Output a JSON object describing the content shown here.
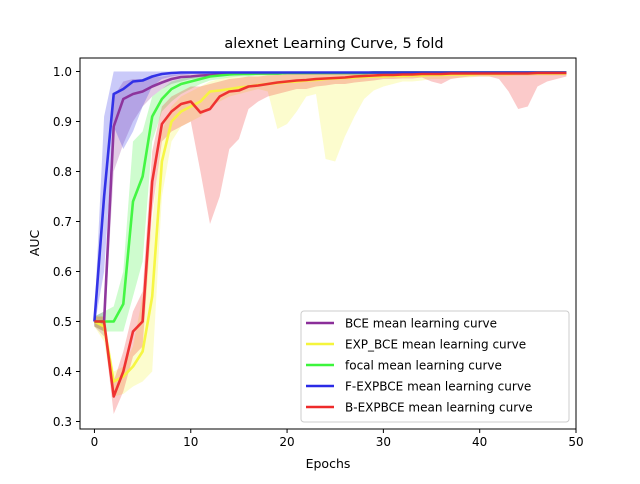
{
  "chart_data": {
    "type": "line",
    "title": "alexnet Learning Curve, 5 fold",
    "xlabel": "Epochs",
    "ylabel": "AUC",
    "xlim": [
      -1.5,
      50
    ],
    "ylim": [
      0.285,
      1.027
    ],
    "xticks": [
      0,
      10,
      20,
      30,
      40,
      50
    ],
    "yticks": [
      0.3,
      0.4,
      0.5,
      0.6,
      0.7,
      0.8,
      0.9,
      1.0
    ],
    "grid": false,
    "legend_position": "lower-right",
    "x": [
      0,
      1,
      2,
      3,
      4,
      5,
      6,
      7,
      8,
      9,
      10,
      11,
      12,
      13,
      14,
      15,
      16,
      17,
      18,
      19,
      20,
      21,
      22,
      23,
      24,
      25,
      26,
      27,
      28,
      29,
      30,
      31,
      32,
      33,
      34,
      35,
      36,
      37,
      38,
      39,
      40,
      41,
      42,
      43,
      44,
      45,
      46,
      47,
      48,
      49
    ],
    "series": [
      {
        "name": "BCE mean learning curve",
        "color": "#8B2E99",
        "band_color": "#8B2E99",
        "values": [
          0.5,
          0.5,
          0.89,
          0.945,
          0.955,
          0.96,
          0.97,
          0.978,
          0.985,
          0.989,
          0.99,
          0.992,
          0.993,
          0.994,
          0.995,
          0.995,
          0.996,
          0.996,
          0.996,
          0.996,
          0.997,
          0.997,
          0.997,
          0.997,
          0.997,
          0.997,
          0.997,
          0.997,
          0.997,
          0.998,
          0.998,
          0.998,
          0.998,
          0.998,
          0.998,
          0.998,
          0.998,
          0.998,
          0.998,
          0.998,
          0.998,
          0.998,
          0.998,
          0.998,
          0.998,
          0.998,
          0.998,
          0.998,
          0.998,
          0.998
        ],
        "lower": [
          0.49,
          0.47,
          0.8,
          0.855,
          0.9,
          0.93,
          0.95,
          0.965,
          0.975,
          0.98,
          0.985,
          0.987,
          0.99,
          0.99,
          0.992,
          0.993,
          0.993,
          0.993,
          0.994,
          0.994,
          0.995,
          0.995,
          0.995,
          0.995,
          0.995,
          0.995,
          0.995,
          0.995,
          0.995,
          0.996,
          0.996,
          0.996,
          0.996,
          0.996,
          0.996,
          0.996,
          0.996,
          0.996,
          0.996,
          0.996,
          0.996,
          0.996,
          0.996,
          0.996,
          0.996,
          0.996,
          0.996,
          0.996,
          0.996,
          0.996
        ],
        "upper": [
          0.51,
          0.52,
          0.95,
          0.98,
          0.985,
          0.985,
          0.988,
          0.99,
          0.993,
          0.995,
          0.995,
          0.996,
          0.996,
          0.997,
          0.997,
          0.997,
          0.998,
          0.998,
          0.998,
          0.998,
          0.998,
          0.998,
          0.998,
          0.998,
          0.998,
          0.998,
          0.998,
          0.998,
          0.998,
          0.999,
          0.999,
          0.999,
          0.999,
          0.999,
          0.999,
          0.999,
          0.999,
          0.999,
          0.999,
          0.999,
          0.999,
          0.999,
          0.999,
          0.999,
          0.999,
          0.999,
          0.999,
          0.999,
          0.999,
          0.999
        ]
      },
      {
        "name": "EXP_BCE mean learning curve",
        "color": "#F5F53C",
        "band_color": "#F5F53C",
        "values": [
          0.5,
          0.49,
          0.38,
          0.39,
          0.41,
          0.44,
          0.55,
          0.82,
          0.9,
          0.92,
          0.93,
          0.94,
          0.96,
          0.962,
          0.965,
          0.968,
          0.97,
          0.973,
          0.975,
          0.977,
          0.979,
          0.98,
          0.982,
          0.983,
          0.985,
          0.986,
          0.987,
          0.988,
          0.989,
          0.99,
          0.99,
          0.991,
          0.991,
          0.992,
          0.992,
          0.993,
          0.993,
          0.994,
          0.994,
          0.994,
          0.995,
          0.995,
          0.995,
          0.995,
          0.996,
          0.996,
          0.996,
          0.996,
          0.996,
          0.996
        ],
        "lower": [
          0.49,
          0.46,
          0.35,
          0.355,
          0.37,
          0.38,
          0.4,
          0.75,
          0.86,
          0.89,
          0.9,
          0.91,
          0.93,
          0.94,
          0.95,
          0.955,
          0.96,
          0.965,
          0.96,
          0.885,
          0.895,
          0.92,
          0.95,
          0.955,
          0.825,
          0.82,
          0.87,
          0.91,
          0.945,
          0.962,
          0.97,
          0.975,
          0.98,
          0.98,
          0.982,
          0.985,
          0.985,
          0.986,
          0.987,
          0.988,
          0.99,
          0.99,
          0.99,
          0.991,
          0.991,
          0.991,
          0.992,
          0.992,
          0.992,
          0.992
        ],
        "upper": [
          0.51,
          0.51,
          0.4,
          0.41,
          0.45,
          0.55,
          0.7,
          0.88,
          0.93,
          0.95,
          0.96,
          0.97,
          0.98,
          0.985,
          0.99,
          0.99,
          0.99,
          0.992,
          0.993,
          0.994,
          0.995,
          0.995,
          0.996,
          0.996,
          0.996,
          0.997,
          0.997,
          0.997,
          0.997,
          0.997,
          0.998,
          0.998,
          0.998,
          0.998,
          0.998,
          0.998,
          0.998,
          0.998,
          0.998,
          0.998,
          0.999,
          0.999,
          0.999,
          0.999,
          0.999,
          0.999,
          0.999,
          0.999,
          0.999,
          0.999
        ]
      },
      {
        "name": "focal mean learning curve",
        "color": "#3CF53C",
        "band_color": "#3CF53C",
        "values": [
          0.5,
          0.5,
          0.5,
          0.535,
          0.74,
          0.79,
          0.91,
          0.945,
          0.965,
          0.975,
          0.98,
          0.985,
          0.99,
          0.992,
          0.994,
          0.995,
          0.995,
          0.996,
          0.996,
          0.996,
          0.997,
          0.997,
          0.997,
          0.997,
          0.997,
          0.997,
          0.997,
          0.997,
          0.997,
          0.998,
          0.998,
          0.998,
          0.998,
          0.998,
          0.998,
          0.998,
          0.998,
          0.998,
          0.998,
          0.998,
          0.998,
          0.998,
          0.998,
          0.998,
          0.998,
          0.998,
          0.998,
          0.998,
          0.998,
          0.998
        ],
        "lower": [
          0.49,
          0.48,
          0.48,
          0.48,
          0.55,
          0.62,
          0.86,
          0.92,
          0.94,
          0.955,
          0.965,
          0.975,
          0.982,
          0.985,
          0.988,
          0.99,
          0.99,
          0.992,
          0.992,
          0.993,
          0.994,
          0.994,
          0.994,
          0.994,
          0.994,
          0.994,
          0.994,
          0.994,
          0.994,
          0.995,
          0.995,
          0.995,
          0.995,
          0.995,
          0.995,
          0.995,
          0.995,
          0.995,
          0.995,
          0.995,
          0.995,
          0.995,
          0.995,
          0.995,
          0.995,
          0.995,
          0.995,
          0.995,
          0.995,
          0.995
        ],
        "upper": [
          0.51,
          0.52,
          0.53,
          0.6,
          0.86,
          0.88,
          0.95,
          0.965,
          0.98,
          0.985,
          0.99,
          0.993,
          0.995,
          0.996,
          0.997,
          0.997,
          0.998,
          0.998,
          0.998,
          0.998,
          0.999,
          0.999,
          0.999,
          0.999,
          0.999,
          0.999,
          0.999,
          0.999,
          0.999,
          0.999,
          0.999,
          0.999,
          0.999,
          0.999,
          0.999,
          0.999,
          0.999,
          0.999,
          0.999,
          0.999,
          0.999,
          0.999,
          0.999,
          0.999,
          0.999,
          0.999,
          0.999,
          0.999,
          0.999,
          0.999
        ]
      },
      {
        "name": "F-EXPBCE mean learning curve",
        "color": "#2A2AE6",
        "band_color": "#2A2AE6",
        "values": [
          0.5,
          0.75,
          0.955,
          0.965,
          0.98,
          0.982,
          0.99,
          0.995,
          0.997,
          0.998,
          0.998,
          0.998,
          0.998,
          0.998,
          0.998,
          0.998,
          0.998,
          0.998,
          0.998,
          0.998,
          0.998,
          0.998,
          0.998,
          0.998,
          0.998,
          0.998,
          0.998,
          0.998,
          0.998,
          0.998,
          0.998,
          0.998,
          0.998,
          0.998,
          0.998,
          0.998,
          0.998,
          0.998,
          0.998,
          0.998,
          0.998,
          0.998,
          0.998,
          0.998,
          0.998,
          0.998,
          0.998,
          0.998,
          0.998,
          0.998
        ],
        "lower": [
          0.49,
          0.6,
          0.89,
          0.845,
          0.88,
          0.93,
          0.97,
          0.985,
          0.99,
          0.993,
          0.995,
          0.996,
          0.996,
          0.996,
          0.996,
          0.996,
          0.996,
          0.996,
          0.996,
          0.996,
          0.996,
          0.996,
          0.996,
          0.996,
          0.996,
          0.996,
          0.996,
          0.996,
          0.996,
          0.996,
          0.996,
          0.996,
          0.996,
          0.996,
          0.996,
          0.996,
          0.996,
          0.996,
          0.996,
          0.996,
          0.996,
          0.996,
          0.996,
          0.996,
          0.996,
          0.996,
          0.996,
          0.996,
          0.996,
          0.996
        ],
        "upper": [
          0.51,
          0.91,
          1.0,
          1.0,
          1.0,
          1.0,
          1.0,
          1.0,
          1.0,
          1.0,
          1.0,
          1.0,
          1.0,
          1.0,
          1.0,
          1.0,
          1.0,
          1.0,
          1.0,
          1.0,
          1.0,
          1.0,
          1.0,
          1.0,
          1.0,
          1.0,
          1.0,
          1.0,
          1.0,
          1.0,
          1.0,
          1.0,
          1.0,
          1.0,
          1.0,
          1.0,
          1.0,
          1.0,
          1.0,
          1.0,
          1.0,
          1.0,
          1.0,
          1.0,
          1.0,
          1.0,
          1.0,
          1.0,
          1.0,
          1.0
        ]
      },
      {
        "name": "B-EXPBCE mean learning curve",
        "color": "#EE2A2A",
        "band_color": "#EE2A2A",
        "values": [
          0.5,
          0.5,
          0.35,
          0.4,
          0.48,
          0.5,
          0.78,
          0.895,
          0.92,
          0.935,
          0.94,
          0.918,
          0.925,
          0.95,
          0.96,
          0.962,
          0.97,
          0.972,
          0.975,
          0.978,
          0.98,
          0.982,
          0.983,
          0.985,
          0.986,
          0.987,
          0.988,
          0.99,
          0.991,
          0.992,
          0.993,
          0.993,
          0.994,
          0.994,
          0.995,
          0.995,
          0.995,
          0.996,
          0.996,
          0.996,
          0.996,
          0.996,
          0.996,
          0.996,
          0.996,
          0.996,
          0.997,
          0.997,
          0.997,
          0.997
        ],
        "lower": [
          0.49,
          0.48,
          0.315,
          0.36,
          0.43,
          0.45,
          0.72,
          0.86,
          0.88,
          0.89,
          0.9,
          0.8,
          0.695,
          0.75,
          0.845,
          0.865,
          0.925,
          0.94,
          0.95,
          0.955,
          0.96,
          0.965,
          0.965,
          0.97,
          0.972,
          0.975,
          0.975,
          0.978,
          0.98,
          0.982,
          0.985,
          0.985,
          0.986,
          0.986,
          0.988,
          0.98,
          0.975,
          0.985,
          0.988,
          0.99,
          0.99,
          0.99,
          0.985,
          0.96,
          0.925,
          0.93,
          0.97,
          0.98,
          0.985,
          0.99
        ],
        "upper": [
          0.51,
          0.51,
          0.38,
          0.44,
          0.52,
          0.56,
          0.84,
          0.93,
          0.95,
          0.96,
          0.97,
          0.97,
          0.975,
          0.98,
          0.985,
          0.987,
          0.99,
          0.99,
          0.992,
          0.993,
          0.994,
          0.995,
          0.995,
          0.996,
          0.996,
          0.997,
          0.997,
          0.997,
          0.997,
          0.998,
          0.998,
          0.998,
          0.998,
          0.998,
          0.998,
          0.998,
          0.998,
          0.998,
          0.998,
          0.998,
          0.998,
          0.999,
          0.999,
          0.999,
          0.999,
          0.999,
          0.999,
          0.999,
          0.999,
          0.999
        ]
      }
    ]
  }
}
